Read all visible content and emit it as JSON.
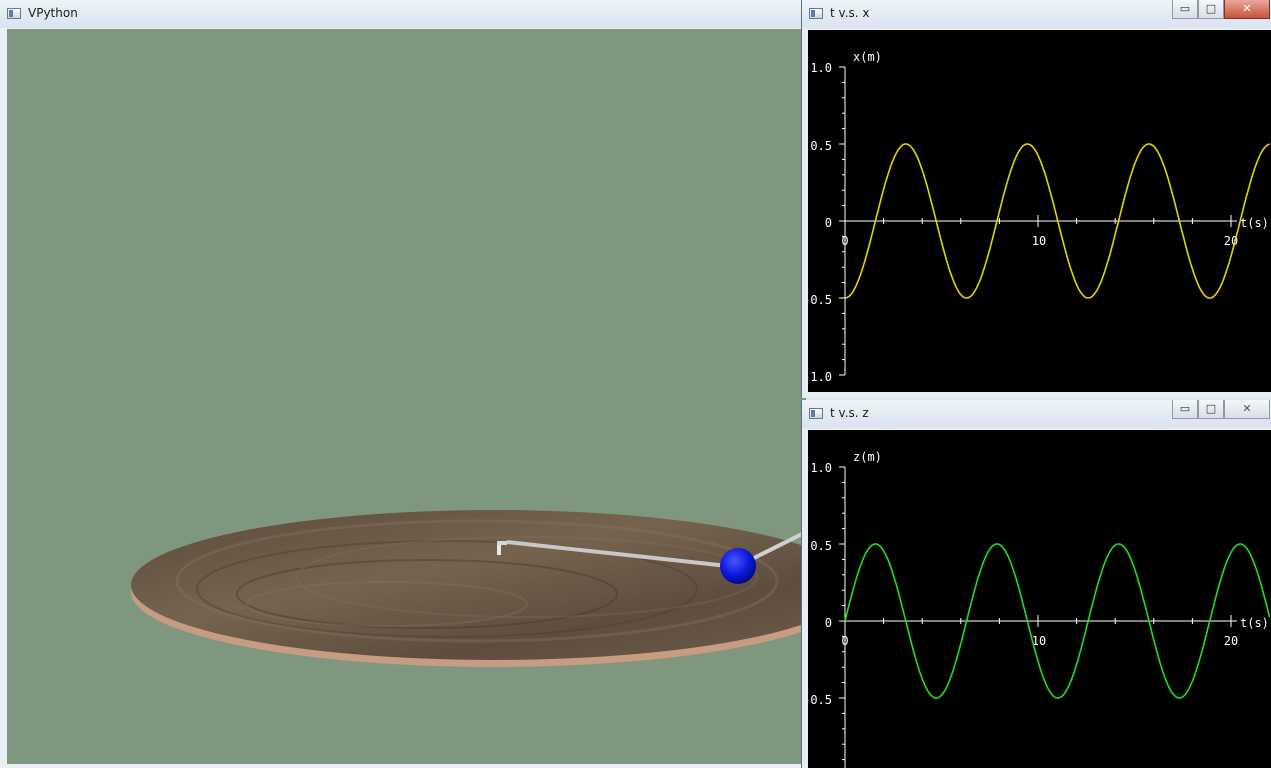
{
  "scene_window": {
    "title": "VPython",
    "background": "#7f977f",
    "puck_color": "#0a16d8",
    "table_color": "#6a5848"
  },
  "windows": {
    "x": {
      "title": "t v.s. x",
      "controls": {
        "minimize": "▭",
        "maximize": "□",
        "close": "✕"
      },
      "y_axis_label": "x(m)",
      "x_axis_label": "t(s)",
      "y_ticks": [
        "1.0",
        "0.5",
        "0",
        "-0.5",
        "-1.0"
      ],
      "x_ticks": [
        "0",
        "10",
        "20"
      ],
      "line_color": "#e6d400"
    },
    "z": {
      "title": "t v.s. z",
      "controls": {
        "minimize": "▭",
        "maximize": "□",
        "close": "✕"
      },
      "y_axis_label": "z(m)",
      "x_axis_label": "t(s)",
      "y_ticks": [
        "1.0",
        "0.5",
        "0",
        "-0.5"
      ],
      "x_ticks": [
        "0",
        "10",
        "20"
      ],
      "line_color": "#22dd22"
    }
  },
  "chart_data": [
    {
      "type": "line",
      "title": "t v.s. x",
      "xlabel": "t(s)",
      "ylabel": "x(m)",
      "xlim": [
        0,
        20
      ],
      "ylim": [
        -1.0,
        1.0
      ],
      "series": [
        {
          "function": "x = -0.5*cos(2*pi*t/6.3)",
          "amplitude": 0.5,
          "period": 6.3,
          "phase": "starts at -0.5",
          "t_range": [
            0,
            22
          ]
        }
      ]
    },
    {
      "type": "line",
      "title": "t v.s. z",
      "xlabel": "t(s)",
      "ylabel": "z(m)",
      "xlim": [
        0,
        20
      ],
      "ylim": [
        -1.0,
        1.0
      ],
      "series": [
        {
          "function": "z = 0.5*sin(2*pi*t/6.3)",
          "amplitude": 0.5,
          "period": 6.3,
          "phase": "starts at 0",
          "t_range": [
            0,
            22
          ]
        }
      ]
    }
  ]
}
